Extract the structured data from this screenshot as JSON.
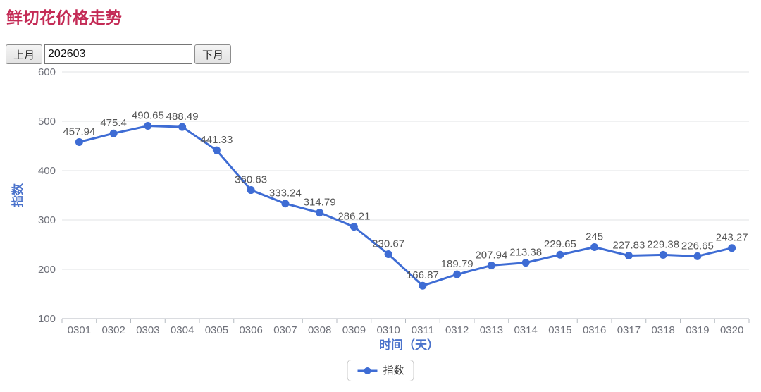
{
  "page": {
    "title": "鲜切花价格走势",
    "title_color": "#c42b56"
  },
  "controls": {
    "prev_label": "上月",
    "month_value": "202603",
    "next_label": "下月"
  },
  "chart_data": {
    "type": "line",
    "title": "鲜切花价格走势",
    "categories": [
      "0301",
      "0302",
      "0303",
      "0304",
      "0305",
      "0306",
      "0307",
      "0308",
      "0309",
      "0310",
      "0311",
      "0312",
      "0313",
      "0314",
      "0315",
      "0316",
      "0317",
      "0318",
      "0319",
      "0320"
    ],
    "series": [
      {
        "name": "指数",
        "values": [
          457.94,
          475.4,
          490.65,
          488.49,
          441.33,
          360.63,
          333.24,
          314.79,
          286.21,
          230.67,
          166.87,
          189.79,
          207.94,
          213.38,
          229.65,
          245,
          227.83,
          229.38,
          226.65,
          243.27
        ]
      }
    ],
    "xlabel": "时间（天）",
    "ylabel": "指数",
    "ylim": [
      100,
      600
    ],
    "ytick_interval": 100,
    "grid": true,
    "legend_position": "bottom",
    "colors": {
      "line": "#3e6cd4",
      "point": "#3e6cd4",
      "data_label": "#555555",
      "axis_tick_label": "#6e7079",
      "axis_name": "#4a72cb",
      "grid_line": "#e0e3e6",
      "axis_line": "#b4bac0"
    }
  },
  "legend": {
    "items": [
      {
        "label": "指数",
        "marker": "line-dot-icon"
      }
    ]
  }
}
